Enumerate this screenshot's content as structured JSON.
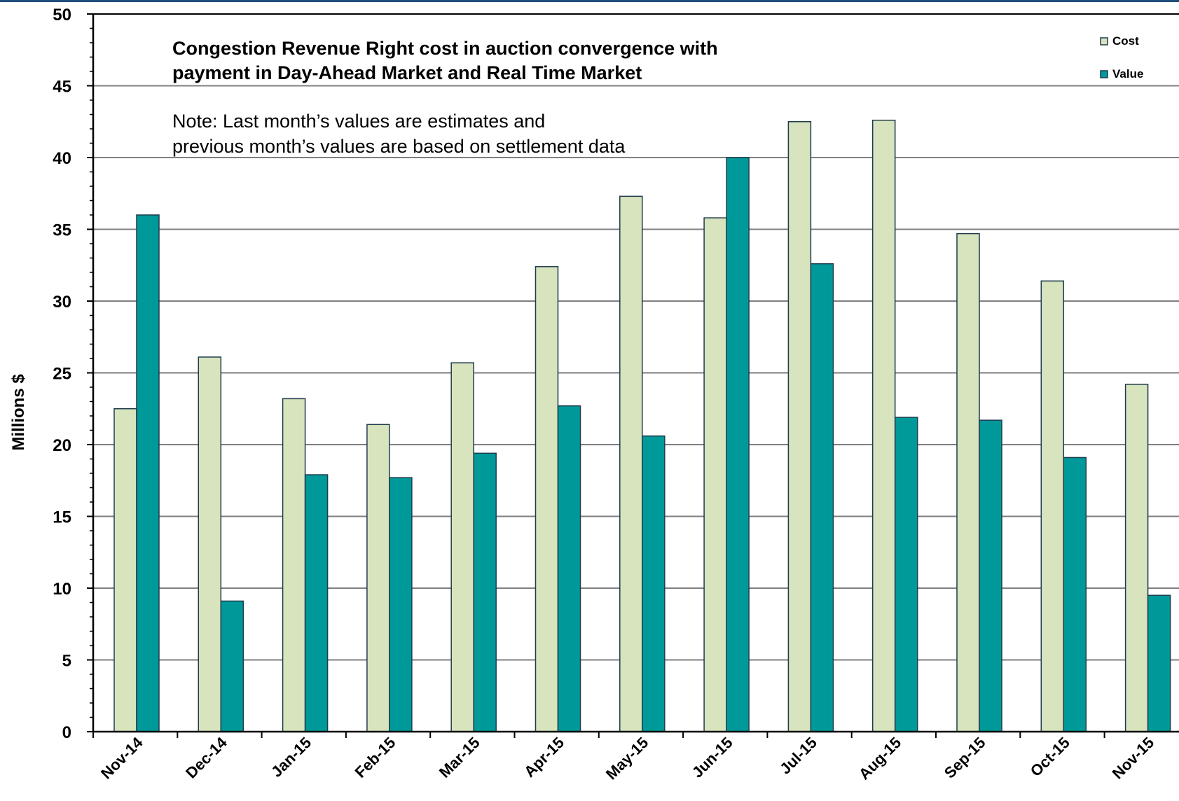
{
  "chart_data": {
    "type": "bar",
    "title": [
      "Congestion Revenue Right cost in auction convergence with",
      "payment in Day-Ahead Market and Real Time Market"
    ],
    "note": [
      "Note: Last month’s values are estimates and",
      "previous month’s values are based on settlement data"
    ],
    "ylabel": "Millions $",
    "xlabel": "",
    "ylim": [
      0,
      50
    ],
    "yticks": [
      0,
      5,
      10,
      15,
      20,
      25,
      30,
      35,
      40,
      45,
      50
    ],
    "grid": true,
    "legend_position": "top-right",
    "categories": [
      "Nov-14",
      "Dec-14",
      "Jan-15",
      "Feb-15",
      "Mar-15",
      "Apr-15",
      "May-15",
      "Jun-15",
      "Jul-15",
      "Aug-15",
      "Sep-15",
      "Oct-15",
      "Nov-15"
    ],
    "series": [
      {
        "name": "Cost",
        "color": "#d7e4bd",
        "values": [
          22.5,
          26.1,
          23.2,
          21.4,
          25.7,
          32.4,
          37.3,
          35.8,
          42.5,
          42.6,
          34.7,
          31.4,
          24.2
        ]
      },
      {
        "name": "Value",
        "color": "#009999",
        "values": [
          36.0,
          9.1,
          17.9,
          17.7,
          19.4,
          22.7,
          20.6,
          40.0,
          32.6,
          21.9,
          21.7,
          19.1,
          9.5
        ]
      }
    ]
  }
}
